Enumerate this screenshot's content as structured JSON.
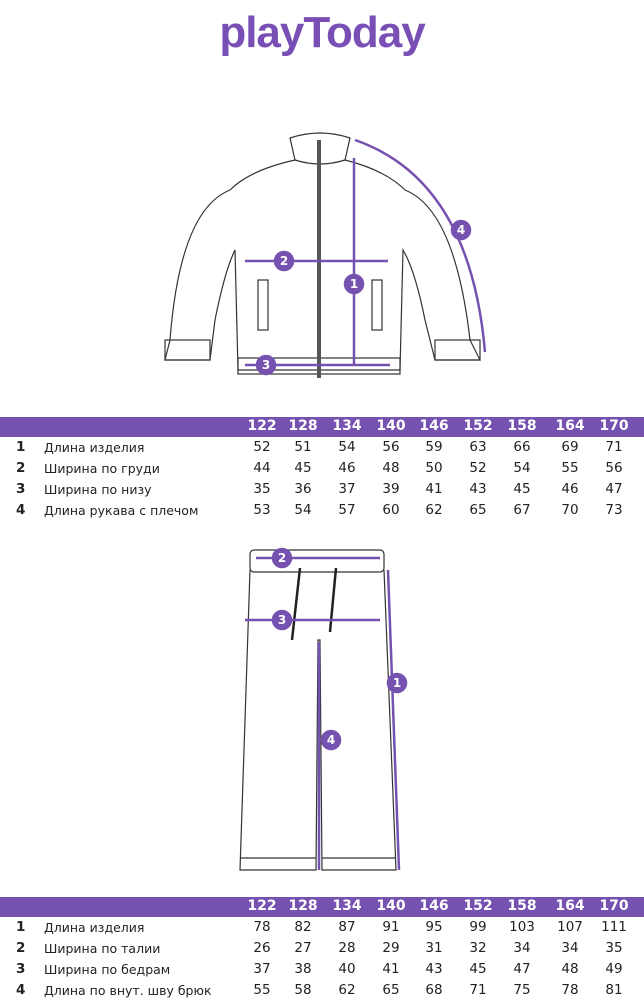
{
  "brand": {
    "logo_text": "playToday",
    "color": "#7a4fb5"
  },
  "accent_color": "#7652b0",
  "sizes": [
    "122",
    "128",
    "134",
    "140",
    "146",
    "152",
    "158",
    "164",
    "170"
  ],
  "jacket": {
    "markers": [
      "1",
      "2",
      "3",
      "4"
    ],
    "rows": [
      {
        "num": "1",
        "label": "Длина изделия",
        "values": [
          "52",
          "51",
          "54",
          "56",
          "59",
          "63",
          "66",
          "69",
          "71"
        ]
      },
      {
        "num": "2",
        "label": "Ширина по груди",
        "values": [
          "44",
          "45",
          "46",
          "48",
          "50",
          "52",
          "54",
          "55",
          "56"
        ]
      },
      {
        "num": "3",
        "label": "Ширина по низу",
        "values": [
          "35",
          "36",
          "37",
          "39",
          "41",
          "43",
          "45",
          "46",
          "47"
        ]
      },
      {
        "num": "4",
        "label": "Длина рукава с плечом",
        "values": [
          "53",
          "54",
          "57",
          "60",
          "62",
          "65",
          "67",
          "70",
          "73"
        ]
      }
    ]
  },
  "pants": {
    "markers": [
      "1",
      "2",
      "3",
      "4"
    ],
    "rows": [
      {
        "num": "1",
        "label": "Длина изделия",
        "values": [
          "78",
          "82",
          "87",
          "91",
          "95",
          "99",
          "103",
          "107",
          "111"
        ]
      },
      {
        "num": "2",
        "label": "Ширина по талии",
        "values": [
          "26",
          "27",
          "28",
          "29",
          "31",
          "32",
          "34",
          "34",
          "35"
        ]
      },
      {
        "num": "3",
        "label": "Ширина по бедрам",
        "values": [
          "37",
          "38",
          "40",
          "41",
          "43",
          "45",
          "47",
          "48",
          "49"
        ]
      },
      {
        "num": "4",
        "label": "Длина по внут. шву брюк",
        "values": [
          "55",
          "58",
          "62",
          "65",
          "68",
          "71",
          "75",
          "78",
          "81"
        ]
      }
    ]
  }
}
